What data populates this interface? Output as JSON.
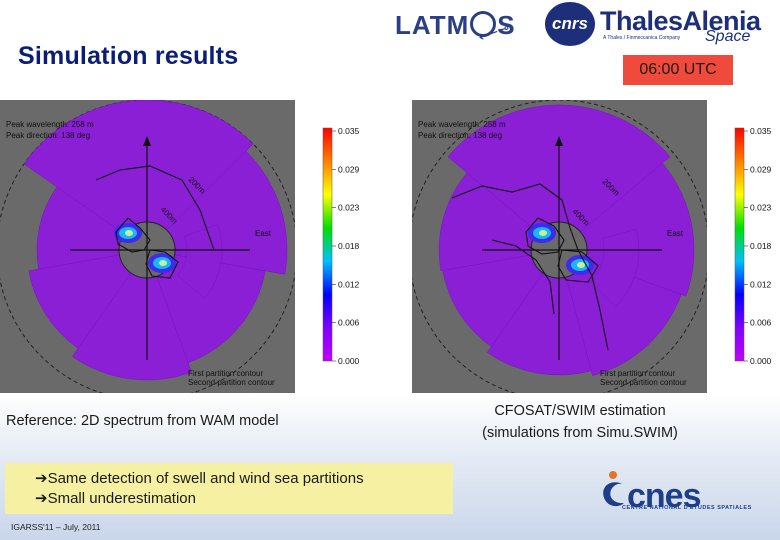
{
  "header": {
    "title": "Simulation results",
    "time_label": "06:00 UTC",
    "logos": {
      "latmos": "LATM",
      "latmos_tail": "S",
      "latmos_satellite": "⟵⊸",
      "cnrs": "cnrs",
      "thales": "ThalesAlenia",
      "thales_space": "Space",
      "thales_sub": "A Thales / Finmeccanica Company"
    }
  },
  "left_panel": {
    "corner_text": [
      "Peak wavelength: 258 m",
      "Peak direction: 138 deg"
    ],
    "legend_lines": [
      "First partition contour",
      "Second partition contour"
    ],
    "colorbar_ticks": [
      "0.035",
      "0.029",
      "0.023",
      "0.018",
      "0.012",
      "0.006",
      "0.000"
    ],
    "east_label": "East",
    "ring_labels": [
      "200m",
      "400m"
    ],
    "caption": "Reference: 2D spectrum from WAM model"
  },
  "right_panel": {
    "corner_text": [
      "Peak wavelength: 258 m",
      "Peak direction: 138 deg"
    ],
    "legend_lines": [
      "First partition contour",
      "Second partition contour"
    ],
    "colorbar_ticks": [
      "0.035",
      "0.029",
      "0.023",
      "0.018",
      "0.012",
      "0.006",
      "0.000"
    ],
    "east_label": "East",
    "ring_labels": [
      "200m",
      "400m"
    ],
    "caption_lines": [
      "CFOSAT/SWIM estimation",
      "(simulations from Simu.SWIM)"
    ]
  },
  "notes": {
    "lines": [
      "➔Same detection of swell and wind sea partitions",
      "➔Small underestimation"
    ]
  },
  "footer": {
    "conference": "IGARSS'11 – July, 2011",
    "cnes_name": "cnes",
    "cnes_sub": "CENTRE NATIONAL D'ÉTUDES SPATIALES"
  },
  "colors": {
    "title": "#0a1e78",
    "utc_badge": "#f04a3c",
    "spectrum_purple": "#8a1fd6",
    "panel_gray": "#6a6a6a",
    "notes_bg": "#f6f0a2",
    "cnes_blue": "#1d3f8a"
  },
  "colorbar_colors": [
    "#ff0000",
    "#ff8000",
    "#ffff00",
    "#00e000",
    "#00c0ff",
    "#0000ff",
    "#8000ff",
    "#c000ff"
  ]
}
